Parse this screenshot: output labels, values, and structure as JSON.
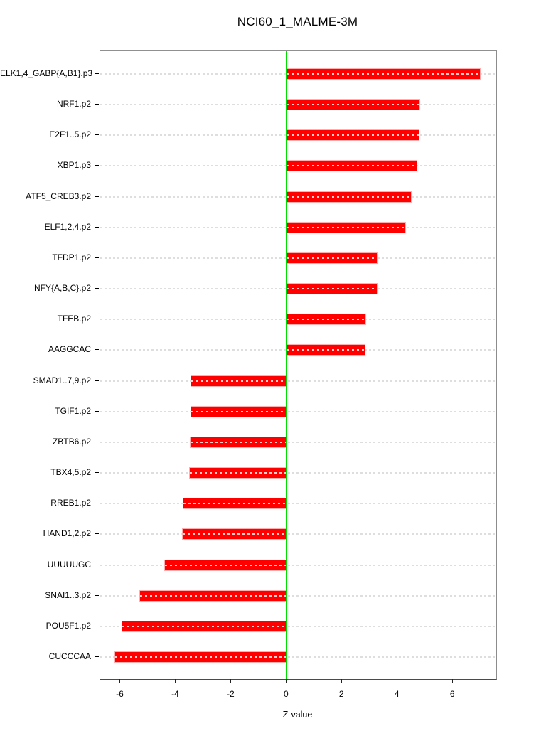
{
  "title": "NCI60_1_MALME-3M",
  "chart_data": {
    "type": "bar",
    "orientation": "horizontal",
    "title": "NCI60_1_MALME-3M",
    "xlabel": "Z-value",
    "xlim": [
      -6.73,
      7.56
    ],
    "x_ticks": [
      -6,
      -4,
      -2,
      0,
      2,
      4,
      6
    ],
    "grid": "dotted-row-lines",
    "zero_line_color": "#00E000",
    "bar_color": "#FF0000",
    "bar_border_color": "#FFADAD",
    "gridline_color": "#DEDEDE",
    "categories": [
      "ELK1,4_GABP{A,B1}.p3",
      "NRF1.p2",
      "E2F1..5.p2",
      "XBP1.p3",
      "ATF5_CREB3.p2",
      "ELF1,2,4.p2",
      "TFDP1.p2",
      "NFY{A,B,C}.p2",
      "TFEB.p2",
      "AAGGCAC",
      "SMAD1..7,9.p2",
      "TGIF1.p2",
      "ZBTB6.p2",
      "TBX4,5.p2",
      "RREB1.p2",
      "HAND1,2.p2",
      "UUUUUGC",
      "SNAI1..3.p2",
      "POU5F1.p2",
      "CUCCCAA"
    ],
    "values": [
      7.0,
      4.82,
      4.79,
      4.71,
      4.5,
      4.3,
      3.28,
      3.27,
      2.86,
      2.85,
      -3.46,
      -3.46,
      -3.5,
      -3.52,
      -3.75,
      -3.79,
      -4.41,
      -5.32,
      -5.96,
      -6.22
    ]
  }
}
